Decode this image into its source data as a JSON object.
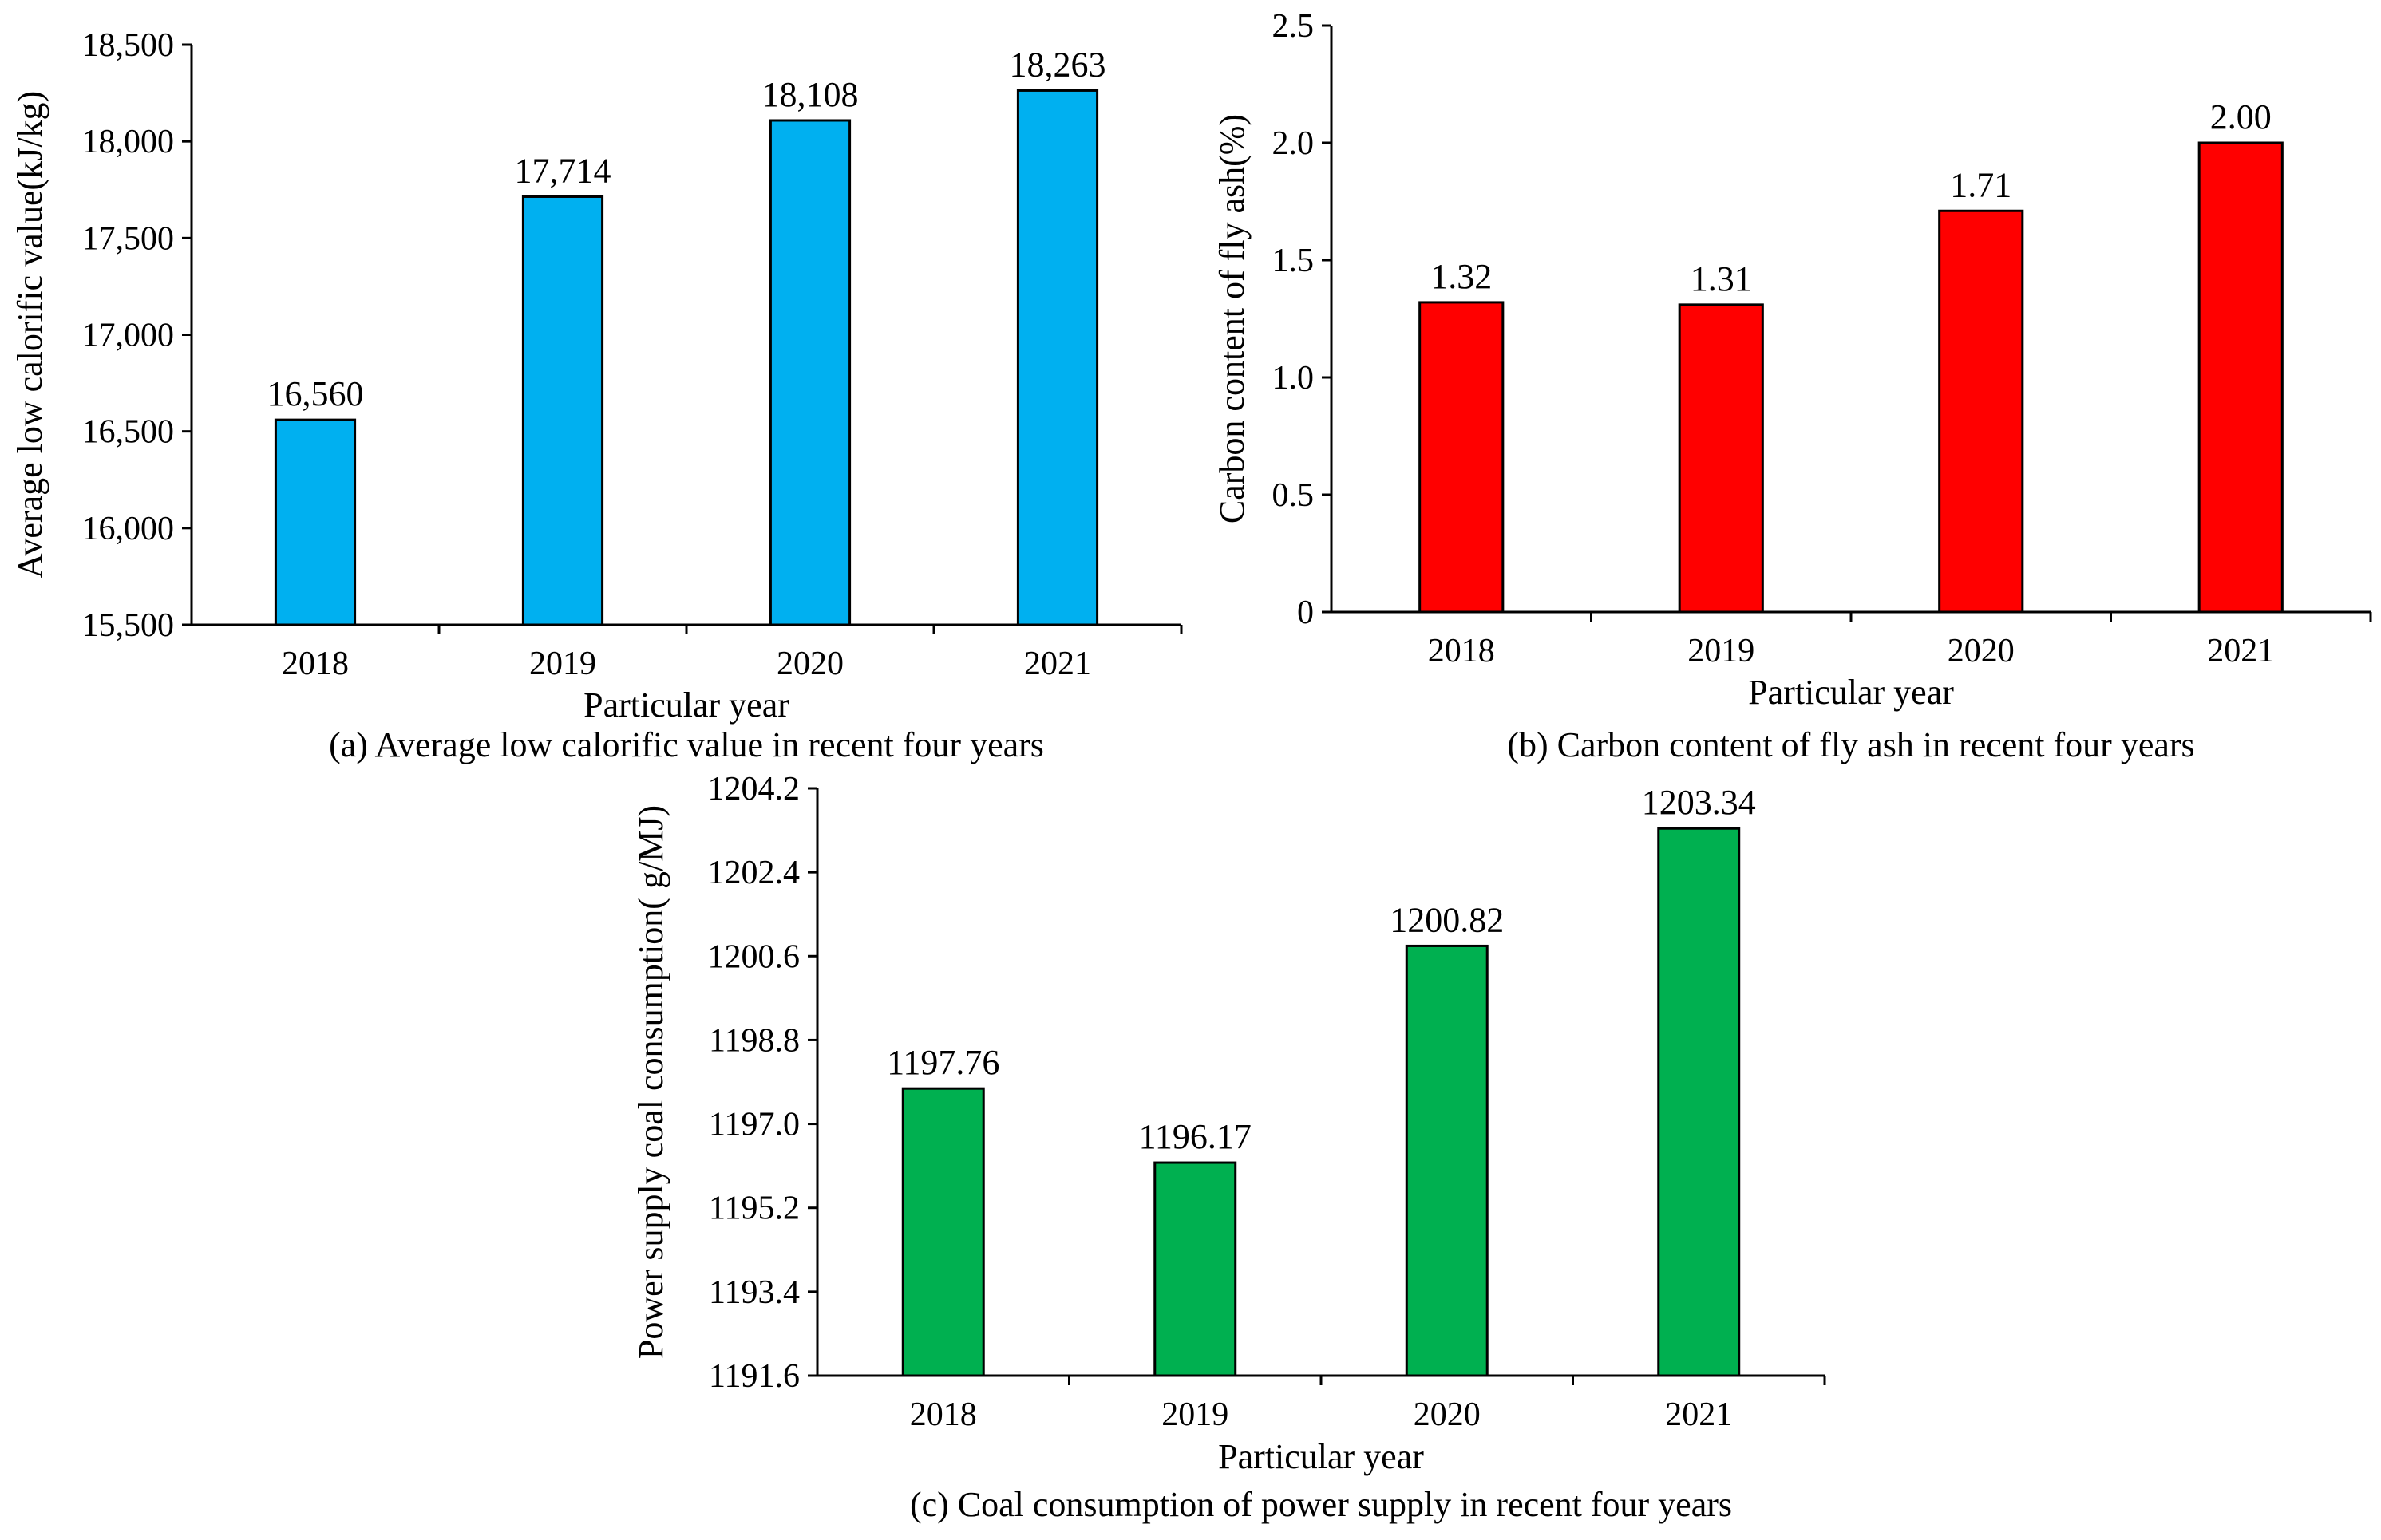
{
  "chart_data": [
    {
      "type": "bar",
      "caption": "(a) Average low calorific value in recent four years",
      "xlabel": "Particular year",
      "ylabel": "Average low calorific value(kJ/kg)",
      "categories": [
        "2018",
        "2019",
        "2020",
        "2021"
      ],
      "values": [
        16560,
        17714,
        18108,
        18263
      ],
      "value_labels": [
        "16,560",
        "17,714",
        "18,108",
        "18,263"
      ],
      "ylim": [
        15500,
        18500
      ],
      "yticks": [
        15500,
        16000,
        16500,
        17000,
        17500,
        18000,
        18500
      ],
      "ytick_labels": [
        "15,500",
        "16,000",
        "16,500",
        "17,000",
        "17,500",
        "18,000",
        "18,500"
      ],
      "color": "#00B0F0",
      "grid": false
    },
    {
      "type": "bar",
      "caption": "(b) Carbon content of fly ash in recent four years",
      "xlabel": "Particular year",
      "ylabel": "Carbon content of fly ash(%)",
      "categories": [
        "2018",
        "2019",
        "2020",
        "2021"
      ],
      "values": [
        1.32,
        1.31,
        1.71,
        2.0
      ],
      "value_labels": [
        "1.32",
        "1.31",
        "1.71",
        "2.00"
      ],
      "ylim": [
        0,
        2.5
      ],
      "yticks": [
        0,
        0.5,
        1.0,
        1.5,
        2.0,
        2.5
      ],
      "ytick_labels": [
        "0",
        "0.5",
        "1.0",
        "1.5",
        "2.0",
        "2.5"
      ],
      "color": "#FF0000",
      "grid": false
    },
    {
      "type": "bar",
      "caption": "(c) Coal consumption of power supply in recent four years",
      "xlabel": "Particular year",
      "ylabel": "Power supply coal consumption( g/MJ)",
      "categories": [
        "2018",
        "2019",
        "2020",
        "2021"
      ],
      "values": [
        1197.76,
        1196.17,
        1200.82,
        1203.34
      ],
      "value_labels": [
        "1197.76",
        "1196.17",
        "1200.82",
        "1203.34"
      ],
      "ylim": [
        1191.6,
        1204.2
      ],
      "yticks": [
        1191.6,
        1193.4,
        1195.2,
        1197.0,
        1198.8,
        1200.6,
        1202.4,
        1204.2
      ],
      "ytick_labels": [
        "1191.6",
        "1193.4",
        "1195.2",
        "1197.0",
        "1198.8",
        "1200.6",
        "1202.4",
        "1204.2"
      ],
      "color": "#00B050",
      "grid": false
    }
  ]
}
